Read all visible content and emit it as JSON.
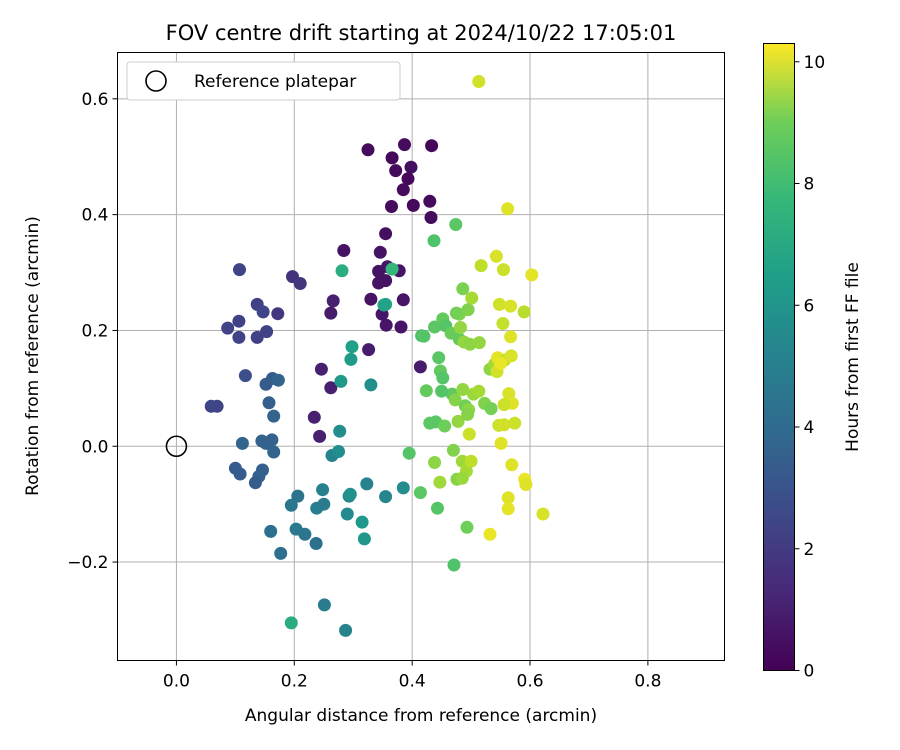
{
  "chart_data": {
    "type": "scatter",
    "title": "FOV centre drift starting at 2024/10/22 17:05:01",
    "xlabel": "Angular distance from reference (arcmin)",
    "ylabel": "Rotation from reference (arcmin)",
    "xlim": [
      -0.1,
      0.93
    ],
    "ylim": [
      -0.37,
      0.68
    ],
    "x_ticks": [
      0.0,
      0.2,
      0.4,
      0.6,
      0.8
    ],
    "x_tick_labels": [
      "0.0",
      "0.2",
      "0.4",
      "0.6",
      "0.8"
    ],
    "y_ticks": [
      -0.2,
      0.0,
      0.2,
      0.4,
      0.6
    ],
    "y_tick_labels": [
      "−0.2",
      "0.0",
      "0.2",
      "0.4",
      "0.6"
    ],
    "grid": true,
    "legend": {
      "placement": "upper-left",
      "label": "Reference platepar"
    },
    "reference_point": {
      "x": 0.0,
      "y": 0.0
    },
    "colorbar": {
      "label": "Hours from first FF file",
      "colormap": "viridis",
      "range": [
        0,
        10.3
      ],
      "ticks": [
        0,
        2,
        4,
        6,
        8,
        10
      ],
      "tick_labels": [
        "0",
        "2",
        "4",
        "6",
        "8",
        "10"
      ]
    },
    "series": [
      {
        "points": [
          {
            "x": 0.513,
            "y": 0.63,
            "h": 9.6
          },
          {
            "x": 0.325,
            "y": 0.512,
            "h": 0.3
          },
          {
            "x": 0.366,
            "y": 0.498,
            "h": 0.2
          },
          {
            "x": 0.387,
            "y": 0.521,
            "h": 0.3
          },
          {
            "x": 0.433,
            "y": 0.519,
            "h": 0.2
          },
          {
            "x": 0.398,
            "y": 0.482,
            "h": 0.4
          },
          {
            "x": 0.372,
            "y": 0.476,
            "h": 0.3
          },
          {
            "x": 0.393,
            "y": 0.462,
            "h": 0.2
          },
          {
            "x": 0.385,
            "y": 0.443,
            "h": 0.3
          },
          {
            "x": 0.43,
            "y": 0.423,
            "h": 0.3
          },
          {
            "x": 0.402,
            "y": 0.416,
            "h": 0.2
          },
          {
            "x": 0.365,
            "y": 0.414,
            "h": 0.3
          },
          {
            "x": 0.432,
            "y": 0.395,
            "h": 0.3
          },
          {
            "x": 0.355,
            "y": 0.367,
            "h": 0.4
          },
          {
            "x": 0.284,
            "y": 0.338,
            "h": 0.5
          },
          {
            "x": 0.346,
            "y": 0.335,
            "h": 0.5
          },
          {
            "x": 0.358,
            "y": 0.31,
            "h": 0.6
          },
          {
            "x": 0.343,
            "y": 0.302,
            "h": 0.5
          },
          {
            "x": 0.378,
            "y": 0.303,
            "h": 0.6
          },
          {
            "x": 0.343,
            "y": 0.282,
            "h": 0.5
          },
          {
            "x": 0.355,
            "y": 0.286,
            "h": 0.5
          },
          {
            "x": 0.33,
            "y": 0.254,
            "h": 0.5
          },
          {
            "x": 0.385,
            "y": 0.253,
            "h": 0.6
          },
          {
            "x": 0.266,
            "y": 0.251,
            "h": 0.9
          },
          {
            "x": 0.349,
            "y": 0.228,
            "h": 0.6
          },
          {
            "x": 0.262,
            "y": 0.23,
            "h": 0.8
          },
          {
            "x": 0.356,
            "y": 0.209,
            "h": 0.6
          },
          {
            "x": 0.381,
            "y": 0.206,
            "h": 0.6
          },
          {
            "x": 0.326,
            "y": 0.167,
            "h": 0.8
          },
          {
            "x": 0.414,
            "y": 0.137,
            "h": 0.8
          },
          {
            "x": 0.246,
            "y": 0.133,
            "h": 0.9
          },
          {
            "x": 0.262,
            "y": 0.101,
            "h": 0.9
          },
          {
            "x": 0.234,
            "y": 0.05,
            "h": 0.9
          },
          {
            "x": 0.243,
            "y": 0.017,
            "h": 0.9
          },
          {
            "x": 0.197,
            "y": 0.293,
            "h": 1.5
          },
          {
            "x": 0.21,
            "y": 0.281,
            "h": 1.6
          },
          {
            "x": 0.107,
            "y": 0.305,
            "h": 2.1
          },
          {
            "x": 0.137,
            "y": 0.245,
            "h": 2.0
          },
          {
            "x": 0.147,
            "y": 0.232,
            "h": 2.2
          },
          {
            "x": 0.172,
            "y": 0.229,
            "h": 1.7
          },
          {
            "x": 0.106,
            "y": 0.216,
            "h": 2.0
          },
          {
            "x": 0.087,
            "y": 0.204,
            "h": 2.1
          },
          {
            "x": 0.153,
            "y": 0.198,
            "h": 2.1
          },
          {
            "x": 0.137,
            "y": 0.188,
            "h": 2.0
          },
          {
            "x": 0.106,
            "y": 0.188,
            "h": 2.1
          },
          {
            "x": 0.059,
            "y": 0.069,
            "h": 2.2
          },
          {
            "x": 0.069,
            "y": 0.069,
            "h": 2.2
          },
          {
            "x": 0.117,
            "y": 0.122,
            "h": 2.5
          },
          {
            "x": 0.163,
            "y": 0.117,
            "h": 3.0
          },
          {
            "x": 0.173,
            "y": 0.114,
            "h": 3.3
          },
          {
            "x": 0.152,
            "y": 0.107,
            "h": 3.0
          },
          {
            "x": 0.157,
            "y": 0.075,
            "h": 3.1
          },
          {
            "x": 0.165,
            "y": 0.052,
            "h": 3.3
          },
          {
            "x": 0.145,
            "y": 0.009,
            "h": 3.2
          },
          {
            "x": 0.112,
            "y": 0.005,
            "h": 3.3
          },
          {
            "x": 0.162,
            "y": 0.011,
            "h": 3.2
          },
          {
            "x": 0.165,
            "y": -0.01,
            "h": 3.3
          },
          {
            "x": 0.152,
            "y": 0.005,
            "h": 3.2
          },
          {
            "x": 0.1,
            "y": -0.038,
            "h": 2.9
          },
          {
            "x": 0.108,
            "y": -0.048,
            "h": 3.0
          },
          {
            "x": 0.146,
            "y": -0.041,
            "h": 3.1
          },
          {
            "x": 0.14,
            "y": -0.052,
            "h": 3.2
          },
          {
            "x": 0.134,
            "y": -0.063,
            "h": 3.0
          },
          {
            "x": 0.16,
            "y": -0.147,
            "h": 3.8
          },
          {
            "x": 0.177,
            "y": -0.185,
            "h": 3.7
          },
          {
            "x": 0.203,
            "y": -0.143,
            "h": 4.2
          },
          {
            "x": 0.218,
            "y": -0.152,
            "h": 4.0
          },
          {
            "x": 0.237,
            "y": -0.168,
            "h": 3.8
          },
          {
            "x": 0.206,
            "y": -0.086,
            "h": 3.9
          },
          {
            "x": 0.195,
            "y": -0.102,
            "h": 4.1
          },
          {
            "x": 0.238,
            "y": -0.107,
            "h": 4.4
          },
          {
            "x": 0.248,
            "y": -0.075,
            "h": 4.5
          },
          {
            "x": 0.25,
            "y": -0.1,
            "h": 4.3
          },
          {
            "x": 0.264,
            "y": -0.016,
            "h": 4.6
          },
          {
            "x": 0.275,
            "y": -0.009,
            "h": 5.0
          },
          {
            "x": 0.277,
            "y": 0.026,
            "h": 5.1
          },
          {
            "x": 0.293,
            "y": -0.086,
            "h": 4.8
          },
          {
            "x": 0.29,
            "y": -0.117,
            "h": 4.9
          },
          {
            "x": 0.323,
            "y": -0.065,
            "h": 4.6
          },
          {
            "x": 0.295,
            "y": -0.083,
            "h": 5.2
          },
          {
            "x": 0.315,
            "y": -0.131,
            "h": 5.5
          },
          {
            "x": 0.319,
            "y": -0.16,
            "h": 5.4
          },
          {
            "x": 0.355,
            "y": -0.087,
            "h": 4.8
          },
          {
            "x": 0.385,
            "y": -0.072,
            "h": 5.0
          },
          {
            "x": 0.287,
            "y": -0.318,
            "h": 4.6
          },
          {
            "x": 0.251,
            "y": -0.274,
            "h": 4.3
          },
          {
            "x": 0.195,
            "y": -0.305,
            "h": 6.3
          },
          {
            "x": 0.279,
            "y": 0.112,
            "h": 5.5
          },
          {
            "x": 0.33,
            "y": 0.106,
            "h": 5.1
          },
          {
            "x": 0.296,
            "y": 0.15,
            "h": 5.6
          },
          {
            "x": 0.298,
            "y": 0.172,
            "h": 5.8
          },
          {
            "x": 0.281,
            "y": 0.303,
            "h": 6.4
          },
          {
            "x": 0.352,
            "y": 0.244,
            "h": 6.0
          },
          {
            "x": 0.355,
            "y": 0.245,
            "h": 5.9
          },
          {
            "x": 0.366,
            "y": 0.306,
            "h": 6.8
          },
          {
            "x": 0.395,
            "y": -0.012,
            "h": 7.5
          },
          {
            "x": 0.414,
            "y": -0.08,
            "h": 7.6
          },
          {
            "x": 0.443,
            "y": -0.107,
            "h": 7.5
          },
          {
            "x": 0.416,
            "y": 0.191,
            "h": 7.3
          },
          {
            "x": 0.42,
            "y": 0.19,
            "h": 7.5
          },
          {
            "x": 0.437,
            "y": 0.355,
            "h": 7.4
          },
          {
            "x": 0.474,
            "y": 0.383,
            "h": 7.6
          },
          {
            "x": 0.424,
            "y": 0.096,
            "h": 7.8
          },
          {
            "x": 0.438,
            "y": 0.206,
            "h": 7.6
          },
          {
            "x": 0.452,
            "y": 0.22,
            "h": 7.8
          },
          {
            "x": 0.457,
            "y": 0.208,
            "h": 7.5
          },
          {
            "x": 0.466,
            "y": 0.195,
            "h": 7.9
          },
          {
            "x": 0.48,
            "y": 0.185,
            "h": 7.8
          },
          {
            "x": 0.445,
            "y": 0.153,
            "h": 7.6
          },
          {
            "x": 0.448,
            "y": 0.13,
            "h": 7.8
          },
          {
            "x": 0.452,
            "y": 0.118,
            "h": 7.5
          },
          {
            "x": 0.468,
            "y": 0.09,
            "h": 7.7
          },
          {
            "x": 0.45,
            "y": 0.095,
            "h": 7.5
          },
          {
            "x": 0.43,
            "y": 0.04,
            "h": 7.6
          },
          {
            "x": 0.44,
            "y": 0.042,
            "h": 7.6
          },
          {
            "x": 0.455,
            "y": 0.035,
            "h": 8.0
          },
          {
            "x": 0.47,
            "y": -0.007,
            "h": 8.3
          },
          {
            "x": 0.471,
            "y": -0.205,
            "h": 7.4
          },
          {
            "x": 0.493,
            "y": -0.14,
            "h": 8.0
          },
          {
            "x": 0.48,
            "y": 0.228,
            "h": 8.3
          },
          {
            "x": 0.486,
            "y": 0.272,
            "h": 8.2
          },
          {
            "x": 0.495,
            "y": 0.236,
            "h": 8.3
          },
          {
            "x": 0.475,
            "y": 0.23,
            "h": 8.1
          },
          {
            "x": 0.482,
            "y": 0.205,
            "h": 8.6
          },
          {
            "x": 0.488,
            "y": 0.18,
            "h": 8.6
          },
          {
            "x": 0.501,
            "y": 0.256,
            "h": 8.9
          },
          {
            "x": 0.498,
            "y": 0.176,
            "h": 8.5
          },
          {
            "x": 0.514,
            "y": 0.179,
            "h": 8.6
          },
          {
            "x": 0.532,
            "y": 0.133,
            "h": 8.5
          },
          {
            "x": 0.54,
            "y": 0.142,
            "h": 8.9
          },
          {
            "x": 0.473,
            "y": 0.08,
            "h": 8.4
          },
          {
            "x": 0.486,
            "y": 0.098,
            "h": 8.6
          },
          {
            "x": 0.49,
            "y": 0.07,
            "h": 8.1
          },
          {
            "x": 0.496,
            "y": 0.063,
            "h": 8.5
          },
          {
            "x": 0.504,
            "y": 0.09,
            "h": 8.7
          },
          {
            "x": 0.513,
            "y": 0.095,
            "h": 8.9
          },
          {
            "x": 0.523,
            "y": 0.074,
            "h": 8.3
          },
          {
            "x": 0.534,
            "y": 0.065,
            "h": 8.1
          },
          {
            "x": 0.478,
            "y": 0.043,
            "h": 8.6
          },
          {
            "x": 0.494,
            "y": 0.055,
            "h": 8.4
          },
          {
            "x": 0.485,
            "y": -0.026,
            "h": 8.8
          },
          {
            "x": 0.492,
            "y": -0.043,
            "h": 8.9
          },
          {
            "x": 0.476,
            "y": -0.057,
            "h": 8.4
          },
          {
            "x": 0.438,
            "y": -0.028,
            "h": 8.5
          },
          {
            "x": 0.447,
            "y": -0.062,
            "h": 8.8
          },
          {
            "x": 0.485,
            "y": -0.055,
            "h": 8.7
          },
          {
            "x": 0.517,
            "y": 0.312,
            "h": 9.3
          },
          {
            "x": 0.543,
            "y": 0.328,
            "h": 9.7
          },
          {
            "x": 0.555,
            "y": 0.305,
            "h": 9.5
          },
          {
            "x": 0.562,
            "y": 0.41,
            "h": 9.8
          },
          {
            "x": 0.548,
            "y": 0.245,
            "h": 9.6
          },
          {
            "x": 0.567,
            "y": 0.242,
            "h": 9.7
          },
          {
            "x": 0.59,
            "y": 0.232,
            "h": 9.2
          },
          {
            "x": 0.603,
            "y": 0.296,
            "h": 9.9
          },
          {
            "x": 0.554,
            "y": 0.212,
            "h": 9.4
          },
          {
            "x": 0.567,
            "y": 0.189,
            "h": 9.8
          },
          {
            "x": 0.545,
            "y": 0.153,
            "h": 9.9
          },
          {
            "x": 0.544,
            "y": 0.129,
            "h": 9.6
          },
          {
            "x": 0.557,
            "y": 0.149,
            "h": 9.4
          },
          {
            "x": 0.568,
            "y": 0.156,
            "h": 9.7
          },
          {
            "x": 0.55,
            "y": 0.143,
            "h": 10.0
          },
          {
            "x": 0.564,
            "y": 0.091,
            "h": 9.7
          },
          {
            "x": 0.57,
            "y": 0.074,
            "h": 9.8
          },
          {
            "x": 0.556,
            "y": 0.072,
            "h": 9.5
          },
          {
            "x": 0.547,
            "y": 0.036,
            "h": 9.5
          },
          {
            "x": 0.556,
            "y": 0.037,
            "h": 9.6
          },
          {
            "x": 0.574,
            "y": 0.04,
            "h": 9.5
          },
          {
            "x": 0.551,
            "y": 0.005,
            "h": 9.8
          },
          {
            "x": 0.569,
            "y": -0.032,
            "h": 9.8
          },
          {
            "x": 0.591,
            "y": -0.057,
            "h": 10.0
          },
          {
            "x": 0.593,
            "y": -0.066,
            "h": 9.8
          },
          {
            "x": 0.563,
            "y": -0.089,
            "h": 9.8
          },
          {
            "x": 0.563,
            "y": -0.108,
            "h": 9.9
          },
          {
            "x": 0.622,
            "y": -0.117,
            "h": 9.7
          },
          {
            "x": 0.532,
            "y": -0.152,
            "h": 10.0
          },
          {
            "x": 0.5,
            "y": -0.026,
            "h": 9.3
          },
          {
            "x": 0.497,
            "y": 0.021,
            "h": 9.5
          }
        ]
      }
    ]
  }
}
